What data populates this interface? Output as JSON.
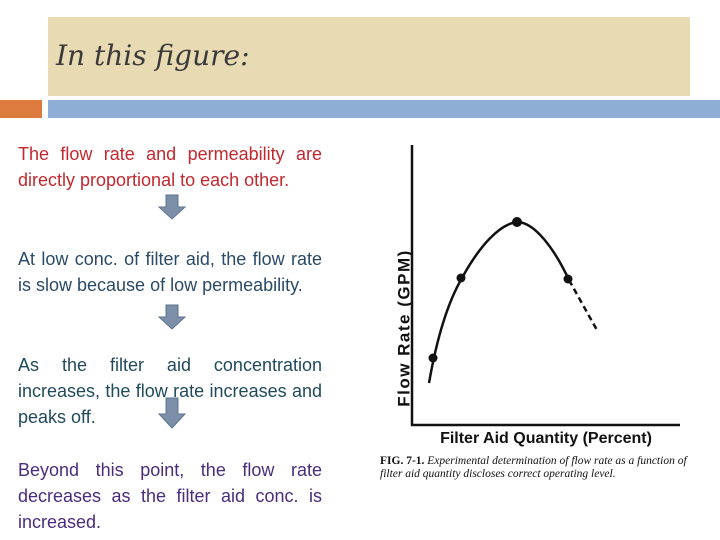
{
  "header": {
    "title": "In this figure:"
  },
  "paragraphs": [
    "The flow rate and permeability are directly proportional to each other.",
    "At  low conc. of filter aid, the flow rate is slow because of low permeability.",
    "As the filter aid concentration increases, the flow rate increases and peaks off.",
    "Beyond this point, the flow rate decreases as the filter aid conc. is increased."
  ],
  "figure": {
    "y_label": "Flow Rate (GPM)",
    "x_label": "Filter Aid Quantity (Percent)",
    "caption": {
      "label": "FIG. 7-1.",
      "text": "Experimental determination of flow rate as a function of filter aid quantity discloses correct operating level."
    }
  }
}
